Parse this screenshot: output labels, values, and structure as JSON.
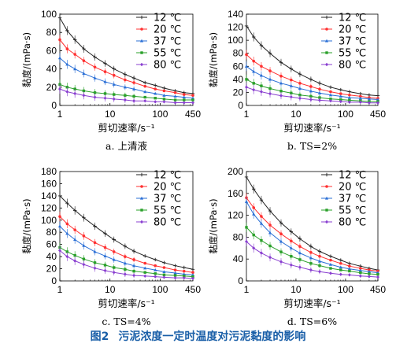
{
  "figure": {
    "caption_num": "图2",
    "caption_text": "污泥浓度一定时温度对污泥黏度的影响"
  },
  "legend": [
    "12 ℃",
    "20 ℃",
    "37 ℃",
    "55 ℃",
    "80 ℃"
  ],
  "colors": [
    "#222222",
    "#ff3030",
    "#2a6fd6",
    "#2aa02a",
    "#8a3fd0"
  ],
  "chart_data": [
    {
      "type": "line",
      "label": "a. 上清液",
      "xlabel": "剪切速率/s⁻¹",
      "ylabel": "黏度/(mPa·s)",
      "xscale": "log",
      "xlim": [
        1,
        450
      ],
      "xticks": [
        "1",
        "10",
        "100",
        "450"
      ],
      "ylim": [
        0,
        100
      ],
      "yticks": [
        0,
        20,
        40,
        60,
        80,
        100
      ],
      "x": [
        1,
        1.4,
        2,
        3,
        5,
        8,
        12,
        20,
        30,
        50,
        80,
        120,
        200,
        300,
        450
      ],
      "series": [
        {
          "name": "12 ℃",
          "values": [
            96,
            82,
            72,
            62,
            53,
            46,
            40,
            34,
            30,
            25,
            22,
            19,
            16,
            14,
            13
          ]
        },
        {
          "name": "20 ℃",
          "values": [
            72,
            62,
            56,
            49,
            42,
            37,
            33,
            28,
            25,
            21,
            18,
            16,
            14,
            12,
            11
          ]
        },
        {
          "name": "37 ℃",
          "values": [
            52,
            45,
            40,
            35,
            30,
            26,
            23,
            20,
            18,
            15,
            13,
            11,
            10,
            9,
            8
          ]
        },
        {
          "name": "55 ℃",
          "values": [
            23,
            20,
            18,
            16,
            14,
            13,
            12,
            11,
            10,
            9,
            8,
            7,
            6,
            6,
            6
          ]
        },
        {
          "name": "80 ℃",
          "values": [
            18,
            15,
            13,
            11,
            9,
            8,
            7,
            6,
            5,
            5,
            4,
            4,
            3,
            3,
            3
          ]
        }
      ]
    },
    {
      "type": "line",
      "label": "b. TS=2%",
      "xlabel": "剪切速率/s⁻¹",
      "ylabel": "黏度/(mPa·s)",
      "xscale": "log",
      "xlim": [
        1,
        450
      ],
      "xticks": [
        "1",
        "10",
        "100",
        "450"
      ],
      "ylim": [
        0,
        140
      ],
      "yticks": [
        0,
        20,
        40,
        60,
        80,
        100,
        120,
        140
      ],
      "x": [
        1,
        1.4,
        2,
        3,
        5,
        8,
        12,
        20,
        30,
        50,
        80,
        120,
        200,
        300,
        450
      ],
      "series": [
        {
          "name": "12 ℃",
          "values": [
            122,
            105,
            92,
            80,
            66,
            56,
            48,
            40,
            34,
            28,
            24,
            21,
            18,
            16,
            15
          ]
        },
        {
          "name": "20 ℃",
          "values": [
            78,
            68,
            60,
            53,
            45,
            39,
            34,
            29,
            25,
            21,
            18,
            16,
            14,
            12,
            11
          ]
        },
        {
          "name": "37 ℃",
          "values": [
            60,
            52,
            46,
            40,
            34,
            30,
            26,
            22,
            19,
            16,
            14,
            12,
            11,
            10,
            9
          ]
        },
        {
          "name": "55 ℃",
          "values": [
            40,
            34,
            30,
            26,
            22,
            19,
            16,
            14,
            12,
            10,
            9,
            8,
            7,
            6,
            6
          ]
        },
        {
          "name": "80 ℃",
          "values": [
            28,
            24,
            21,
            18,
            15,
            13,
            11,
            9,
            8,
            7,
            6,
            5,
            5,
            4,
            4
          ]
        }
      ]
    },
    {
      "type": "line",
      "label": "c. TS=4%",
      "xlabel": "剪切速率/s⁻¹",
      "ylabel": "黏度/(mPa·s)",
      "xscale": "log",
      "xlim": [
        1,
        450
      ],
      "xticks": [
        "1",
        "10",
        "100",
        "450"
      ],
      "ylim": [
        0,
        180
      ],
      "yticks": [
        0,
        20,
        40,
        60,
        80,
        100,
        120,
        140,
        160,
        180
      ],
      "x": [
        1,
        1.4,
        2,
        3,
        5,
        8,
        12,
        20,
        30,
        50,
        80,
        120,
        200,
        300,
        450
      ],
      "series": [
        {
          "name": "12 ℃",
          "values": [
            140,
            128,
            116,
            104,
            90,
            78,
            68,
            57,
            49,
            41,
            35,
            30,
            25,
            22,
            19
          ]
        },
        {
          "name": "20 ℃",
          "values": [
            106,
            94,
            84,
            74,
            63,
            55,
            48,
            40,
            35,
            29,
            25,
            22,
            18,
            16,
            14
          ]
        },
        {
          "name": "37 ℃",
          "values": [
            90,
            78,
            68,
            58,
            48,
            41,
            35,
            29,
            25,
            21,
            18,
            15,
            13,
            11,
            10
          ]
        },
        {
          "name": "55 ℃",
          "values": [
            55,
            48,
            42,
            36,
            30,
            26,
            22,
            19,
            16,
            14,
            12,
            10,
            9,
            8,
            7
          ]
        },
        {
          "name": "80 ℃",
          "values": [
            50,
            40,
            33,
            27,
            21,
            17,
            14,
            11,
            9,
            8,
            7,
            6,
            5,
            5,
            4
          ]
        }
      ]
    },
    {
      "type": "line",
      "label": "d. TS=6%",
      "xlabel": "剪切速率/s⁻¹",
      "ylabel": "黏度/(mPa·s)",
      "xscale": "log",
      "xlim": [
        1,
        450
      ],
      "xticks": [
        "1",
        "10",
        "100",
        "450"
      ],
      "ylim": [
        0,
        200
      ],
      "yticks": [
        0,
        40,
        80,
        120,
        160,
        200
      ],
      "x": [
        1,
        1.4,
        2,
        3,
        5,
        8,
        12,
        20,
        30,
        50,
        80,
        120,
        200,
        300,
        450
      ],
      "series": [
        {
          "name": "12 ℃",
          "values": [
            190,
            168,
            148,
            128,
            106,
            90,
            77,
            63,
            54,
            45,
            38,
            32,
            27,
            23,
            20
          ]
        },
        {
          "name": "20 ℃",
          "values": [
            152,
            134,
            118,
            102,
            86,
            73,
            63,
            52,
            45,
            38,
            32,
            27,
            23,
            20,
            18
          ]
        },
        {
          "name": "37 ℃",
          "values": [
            145,
            122,
            105,
            88,
            72,
            60,
            51,
            42,
            36,
            30,
            25,
            22,
            19,
            17,
            15
          ]
        },
        {
          "name": "55 ℃",
          "values": [
            98,
            84,
            74,
            64,
            53,
            45,
            39,
            32,
            28,
            23,
            20,
            18,
            15,
            13,
            12
          ]
        },
        {
          "name": "80 ℃",
          "values": [
            72,
            60,
            51,
            43,
            35,
            29,
            25,
            20,
            17,
            14,
            12,
            11,
            9,
            8,
            7
          ]
        }
      ]
    }
  ]
}
